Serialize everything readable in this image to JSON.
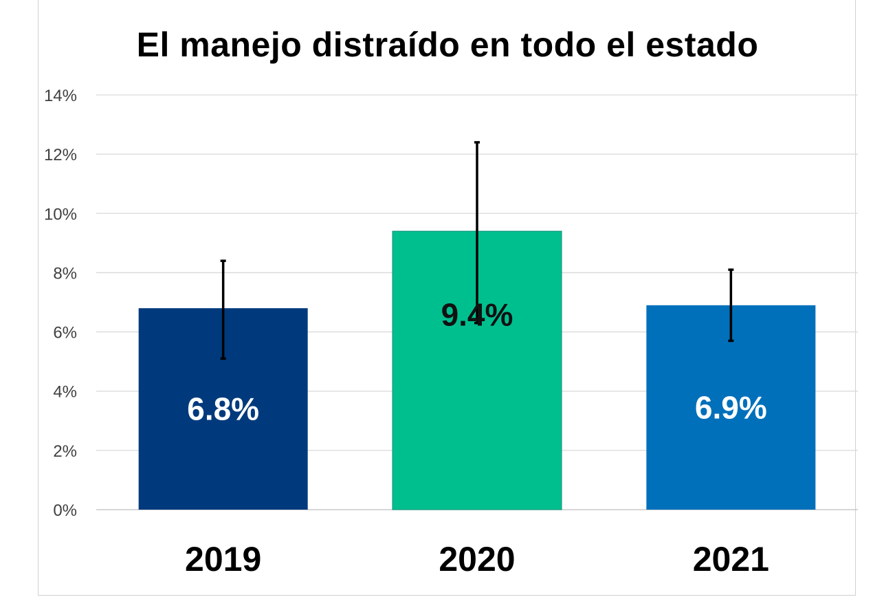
{
  "chart_data": {
    "type": "bar",
    "title": "El manejo distraído en todo el estado",
    "categories": [
      "2019",
      "2020",
      "2021"
    ],
    "values": [
      6.8,
      9.4,
      6.9
    ],
    "error_bars": [
      {
        "low": 5.1,
        "high": 8.4
      },
      {
        "low": 6.3,
        "high": 12.4
      },
      {
        "low": 5.7,
        "high": 8.1
      }
    ],
    "data_labels": [
      "6.8%",
      "9.4%",
      "6.9%"
    ],
    "bar_colors": [
      "#003a7d",
      "#00bf8f",
      "#0070bb"
    ],
    "data_label_colors": [
      "#ffffff",
      "#111111",
      "#ffffff"
    ],
    "ylim": [
      0,
      14
    ],
    "yticks": [
      0,
      2,
      4,
      6,
      8,
      10,
      12,
      14
    ],
    "ytick_labels": [
      "0%",
      "2%",
      "4%",
      "6%",
      "8%",
      "10%",
      "12%",
      "14%"
    ],
    "xlabel": "",
    "ylabel": "",
    "grid": true,
    "legend": "none"
  }
}
